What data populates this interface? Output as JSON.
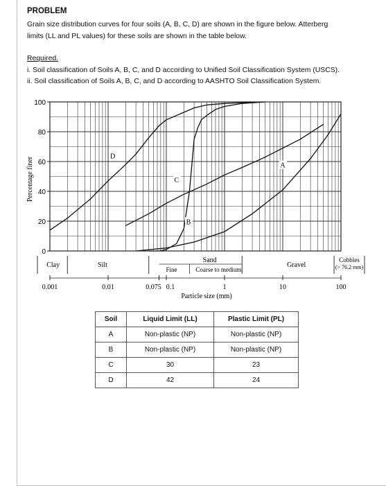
{
  "heading": "PROBLEM",
  "description": {
    "line1": "Grain size distribution curves for four soils (A, B, C, D) are shown in the figure below. Atterberg",
    "line2": "limits (LL and PL values) for these soils are shown in the table below."
  },
  "required": {
    "title": "Required.",
    "items": [
      "i.  Soil classification of Soils A, B, C, and D according to Unified Soil Classification System (USCS).",
      "ii.  Soil classification of Soils A, B, C, and D according to AASHTO Soil Classification System."
    ]
  },
  "chart_data": {
    "type": "line",
    "xscale": "log",
    "xlim": [
      0.001,
      100
    ],
    "ylim": [
      0,
      100
    ],
    "xlabel": "Particle size (mm)",
    "ylabel": "Percentage finer",
    "x_ticks": [
      "0.001",
      "0.01",
      "0.075",
      "0.1",
      "1",
      "10",
      "100"
    ],
    "y_ticks": [
      "0",
      "20",
      "40",
      "60",
      "80",
      "100"
    ],
    "series": [
      {
        "name": "D",
        "x": [
          0.001,
          0.002,
          0.005,
          0.01,
          0.02,
          0.03,
          0.05,
          0.075,
          0.1,
          0.2,
          0.3,
          0.5,
          1,
          2,
          4
        ],
        "y": [
          14,
          22,
          35,
          47,
          58,
          65,
          76,
          84,
          88,
          93,
          96,
          98,
          99,
          99.5,
          100
        ]
      },
      {
        "name": "C",
        "x": [
          0.02,
          0.05,
          0.1,
          0.2,
          0.5,
          1,
          2,
          5,
          10,
          20,
          50
        ],
        "y": [
          17,
          25,
          32,
          38,
          45,
          51,
          56,
          63,
          69,
          75,
          85
        ]
      },
      {
        "name": "B",
        "x": [
          0.05,
          0.075,
          0.1,
          0.15,
          0.2,
          0.25,
          0.3,
          0.35,
          0.4,
          0.5,
          0.7,
          1,
          2,
          5
        ],
        "y": [
          0,
          0,
          1,
          5,
          15,
          40,
          75,
          83,
          88,
          91,
          95,
          97,
          99,
          100
        ]
      },
      {
        "name": "A",
        "x": [
          0.03,
          0.1,
          0.3,
          1,
          3,
          10,
          30,
          60,
          100
        ],
        "y": [
          0,
          2,
          6,
          13,
          25,
          41,
          62,
          78,
          92
        ]
      }
    ],
    "soil_bands": {
      "clay": "Clay",
      "silt": "Silt",
      "sand": "Sand",
      "fine": "Fine",
      "coarse_medium": "Coarse to medium",
      "gravel": "Gravel",
      "cobbles": "Cobbles",
      "cobbles_note": "(> 76.2 mm)"
    }
  },
  "table": {
    "headers": [
      "Soil",
      "Liquid Limit (LL)",
      "Plastic Limit (PL)"
    ],
    "rows": [
      [
        "A",
        "Non-plastic (NP)",
        "Non-plastic (NP)"
      ],
      [
        "B",
        "Non-plastic (NP)",
        "Non-plastic (NP)"
      ],
      [
        "C",
        "30",
        "23"
      ],
      [
        "D",
        "42",
        "24"
      ]
    ]
  }
}
